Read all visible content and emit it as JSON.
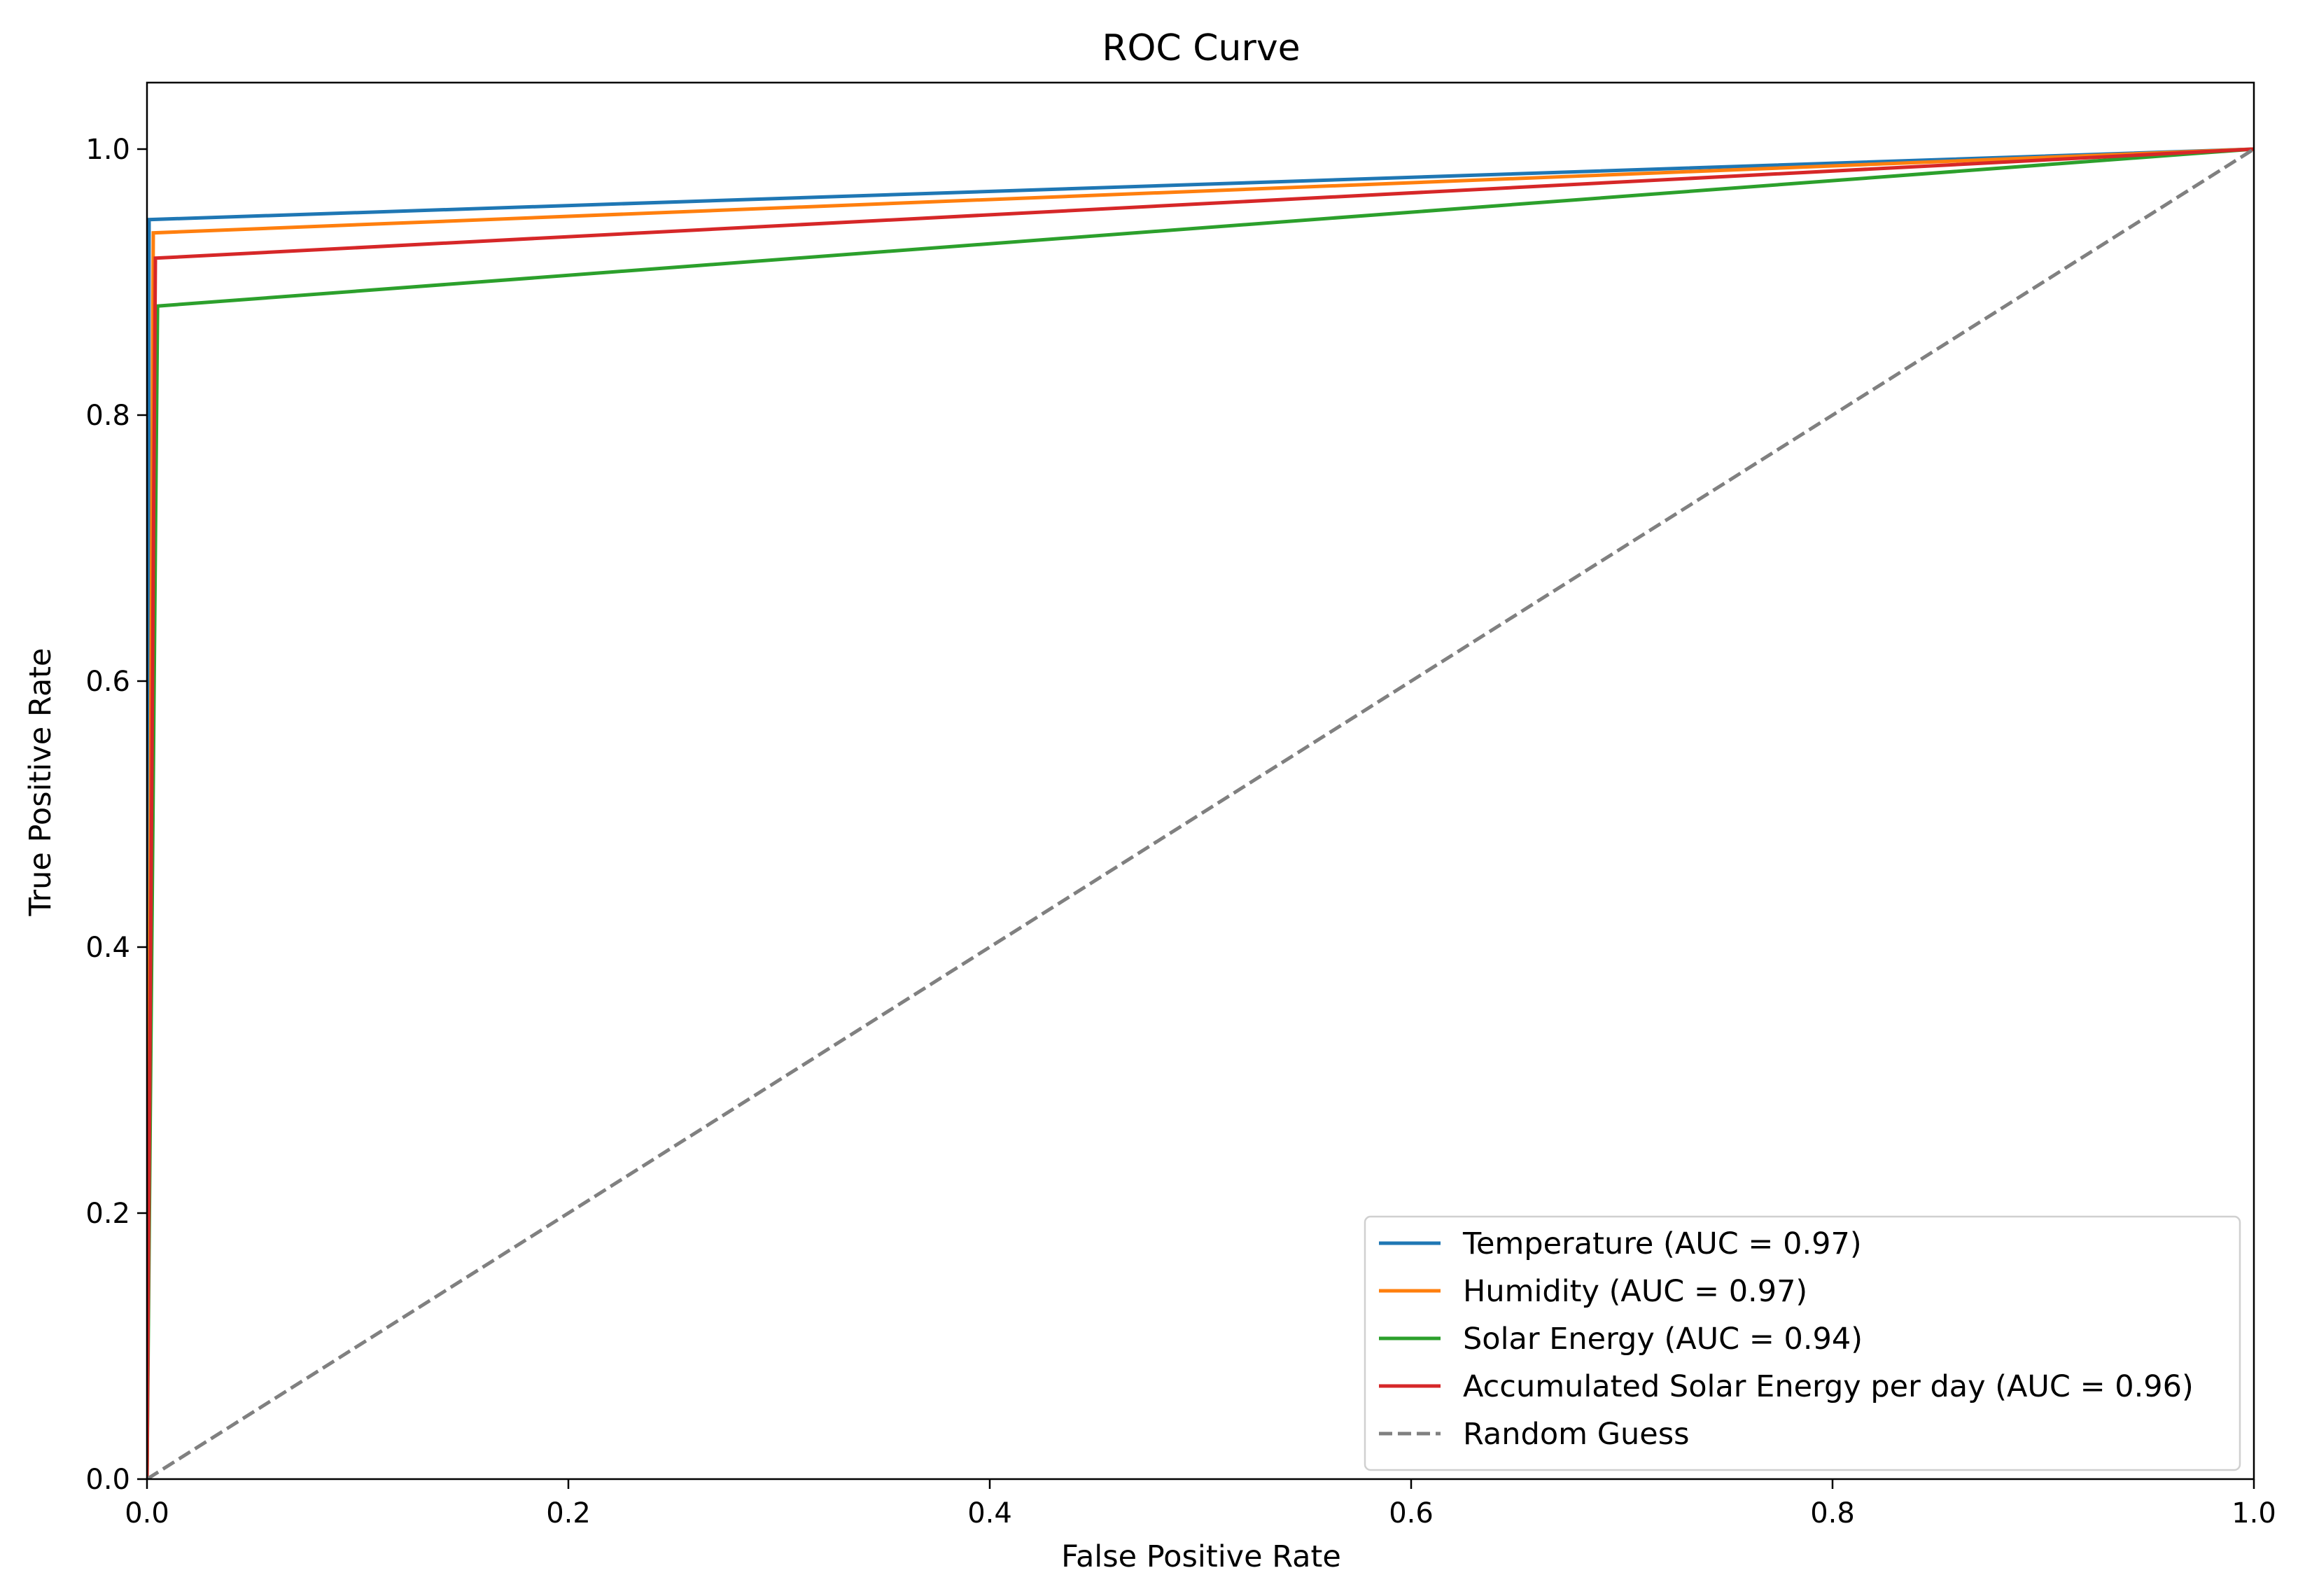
{
  "chart_data": {
    "type": "line",
    "title": "ROC Curve",
    "xlabel": "False Positive Rate",
    "ylabel": "True Positive Rate",
    "xlim": [
      0.0,
      1.0
    ],
    "ylim": [
      0.0,
      1.05
    ],
    "xticks": [
      0.0,
      0.2,
      0.4,
      0.6,
      0.8,
      1.0
    ],
    "xtick_labels": [
      "0.0",
      "0.2",
      "0.4",
      "0.6",
      "0.8",
      "1.0"
    ],
    "yticks": [
      0.0,
      0.2,
      0.4,
      0.6,
      0.8,
      1.0
    ],
    "ytick_labels": [
      "0.0",
      "0.2",
      "0.4",
      "0.6",
      "0.8",
      "1.0"
    ],
    "grid": false,
    "legend_position": "lower right",
    "series": [
      {
        "name": "Temperature (AUC = 0.97)",
        "color": "#1f77b4",
        "style": "solid",
        "x": [
          0.0,
          0.001,
          1.0
        ],
        "y": [
          0.0,
          0.947,
          1.0
        ]
      },
      {
        "name": "Humidity (AUC = 0.97)",
        "color": "#ff7f0e",
        "style": "solid",
        "x": [
          0.0,
          0.003,
          1.0
        ],
        "y": [
          0.0,
          0.937,
          1.0
        ]
      },
      {
        "name": "Solar Energy (AUC = 0.94)",
        "color": "#2ca02c",
        "style": "solid",
        "x": [
          0.0,
          0.005,
          1.0
        ],
        "y": [
          0.0,
          0.882,
          1.0
        ]
      },
      {
        "name": "Accumulated Solar Energy per day (AUC = 0.96)",
        "color": "#d62728",
        "style": "solid",
        "x": [
          0.0,
          0.004,
          1.0
        ],
        "y": [
          0.0,
          0.918,
          1.0
        ]
      },
      {
        "name": "Random Guess",
        "color": "#808080",
        "style": "dashed",
        "x": [
          0.0,
          1.0
        ],
        "y": [
          0.0,
          1.0
        ]
      }
    ]
  }
}
